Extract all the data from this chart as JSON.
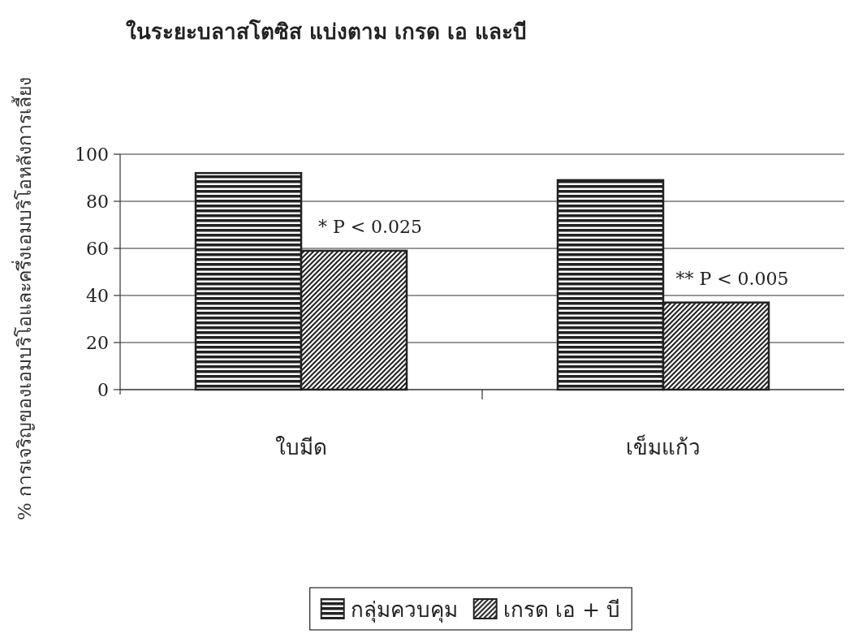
{
  "chart_data": {
    "type": "bar",
    "title": "ในระยะบลาสโตซิส แบ่งตาม เกรด เอ และบี",
    "ylabel": "% การเจริญของเอมบริโอและครึ่งเอมบริโอหลังการเลี้ยง",
    "categories": [
      "ใบมีด",
      "เข็มแก้ว"
    ],
    "series": [
      {
        "name": "กลุ่มควบคุม",
        "color": "#222222",
        "values": [
          92,
          89
        ]
      },
      {
        "name": "เกรด เอ + บี",
        "color": "#222222",
        "values": [
          59,
          37
        ]
      }
    ],
    "ylim": [
      0,
      100
    ],
    "yticks": [
      0,
      20,
      40,
      60,
      80,
      100
    ],
    "grid": "y",
    "legend": "bottom",
    "annotations": [
      {
        "text": "* P < 0.025",
        "x": "ใบมีด",
        "y": 59
      },
      {
        "text": "** P < 0.005",
        "x": "เข็มแก้ว",
        "y": 37
      }
    ]
  }
}
